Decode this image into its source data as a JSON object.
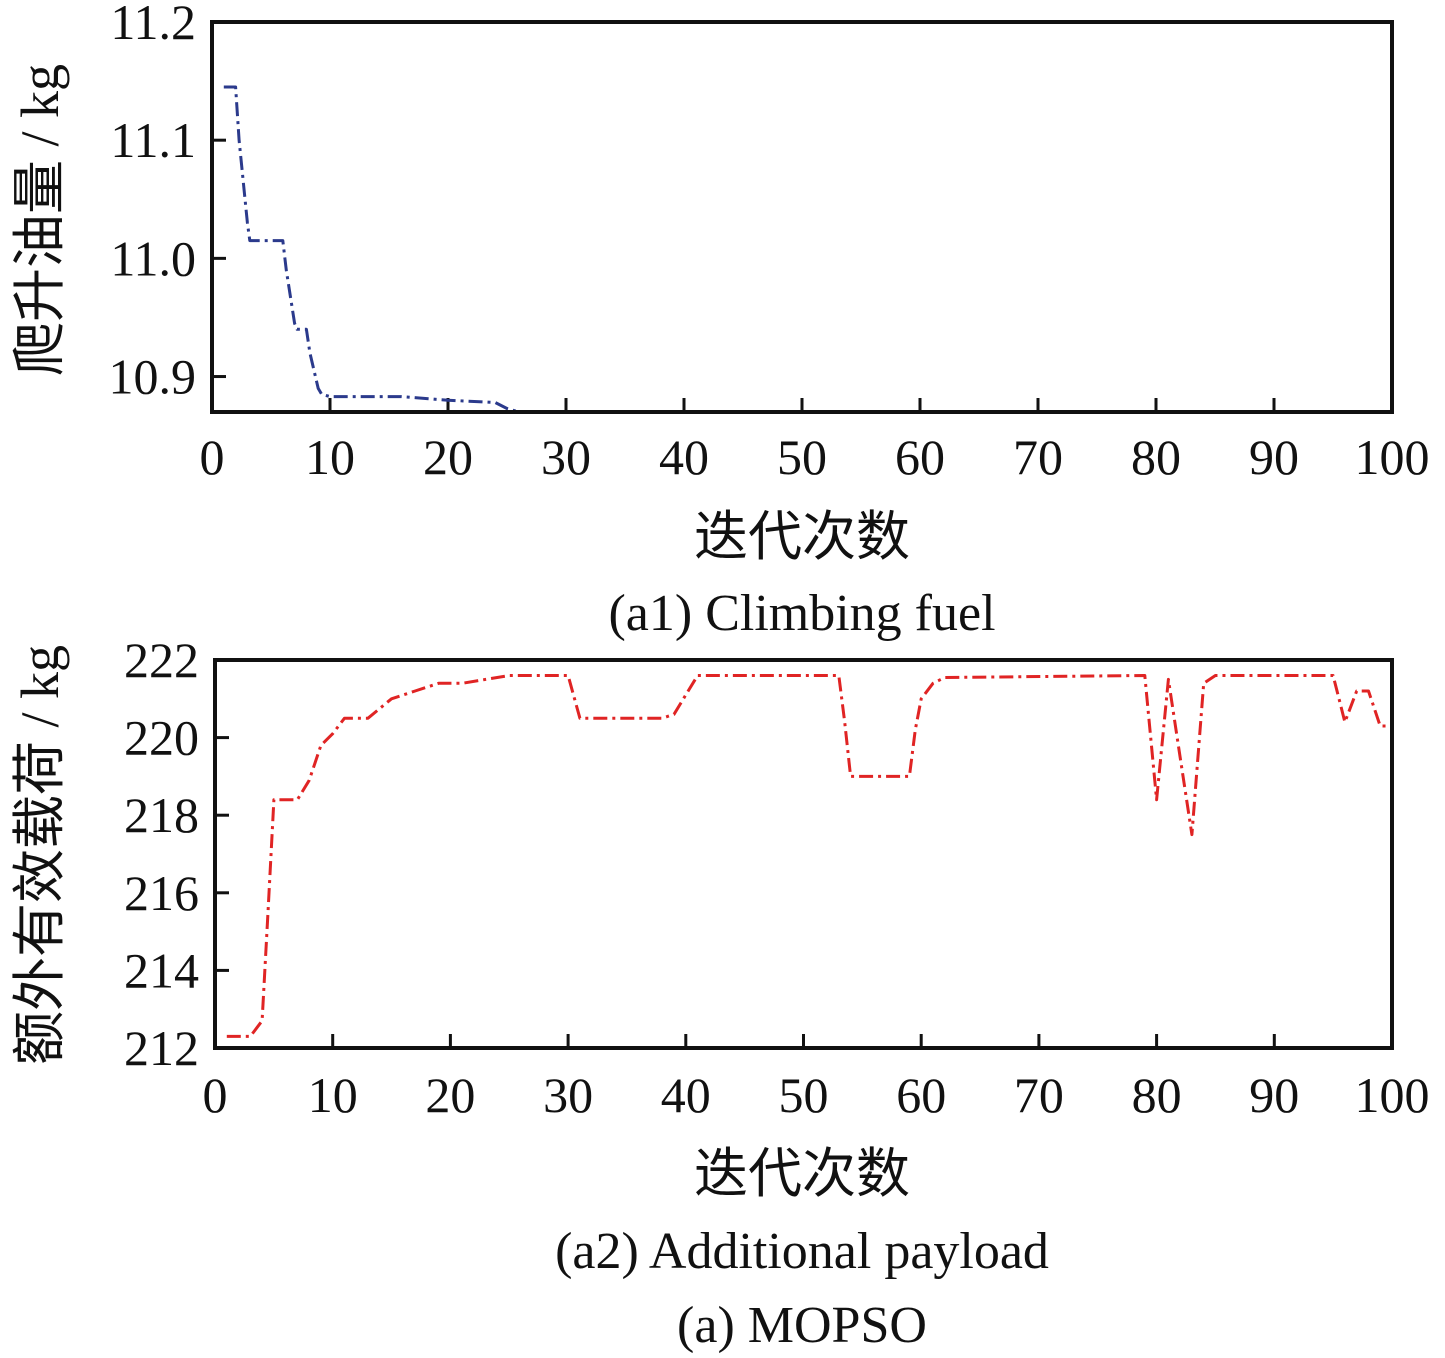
{
  "figure_caption": "(a) MOPSO",
  "chart_data": [
    {
      "id": "a1",
      "type": "line",
      "title": "(a1) Climbing fuel",
      "xlabel": "迭代次数",
      "ylabel": "爬升油量 / kg",
      "xlim": [
        0,
        100
      ],
      "ylim": [
        10.87,
        11.2
      ],
      "xticks": [
        0,
        10,
        20,
        30,
        40,
        50,
        60,
        70,
        80,
        90,
        100
      ],
      "yticks": [
        10.9,
        11.0,
        11.1,
        11.2
      ],
      "xtick_labels": [
        "0",
        "10",
        "20",
        "30",
        "40",
        "50",
        "60",
        "70",
        "80",
        "90",
        "100"
      ],
      "ytick_labels": [
        "10.9",
        "11.0",
        "11.1",
        "11.2"
      ],
      "grid": false,
      "line_style": "dash-dot",
      "series": [
        {
          "color": "#2b3a8c",
          "x": [
            1,
            2,
            2.3,
            3,
            3.2,
            6,
            6.3,
            7,
            7.2,
            8,
            8.3,
            9,
            9.3,
            10,
            16,
            20,
            24,
            25,
            26
          ],
          "y": [
            11.145,
            11.145,
            11.1,
            11.03,
            11.015,
            11.015,
            10.99,
            10.945,
            10.94,
            10.94,
            10.92,
            10.89,
            10.885,
            10.883,
            10.883,
            10.88,
            10.878,
            10.873,
            10.868
          ]
        }
      ]
    },
    {
      "id": "a2",
      "type": "line",
      "title": "(a2) Additional payload",
      "xlabel": "迭代次数",
      "ylabel": "额外有效载荷 / kg",
      "xlim": [
        0,
        100
      ],
      "ylim": [
        212,
        222
      ],
      "xticks": [
        0,
        10,
        20,
        30,
        40,
        50,
        60,
        70,
        80,
        90,
        100
      ],
      "yticks": [
        212,
        214,
        216,
        218,
        220,
        222
      ],
      "xtick_labels": [
        "0",
        "10",
        "20",
        "30",
        "40",
        "50",
        "60",
        "70",
        "80",
        "90",
        "100"
      ],
      "ytick_labels": [
        "212",
        "214",
        "216",
        "218",
        "220",
        "222"
      ],
      "grid": false,
      "line_style": "dash-dot",
      "series": [
        {
          "color": "#e02424",
          "x": [
            1,
            3,
            4,
            4.5,
            5,
            7,
            8,
            9,
            10,
            11,
            13,
            15,
            17,
            19,
            21,
            23,
            25,
            27,
            30,
            31,
            38,
            39,
            40,
            41,
            53,
            53.5,
            54,
            59,
            59.5,
            60,
            61,
            62,
            79,
            80,
            81,
            82,
            83,
            84,
            85,
            95,
            96,
            97,
            98,
            99,
            100
          ],
          "y": [
            212.3,
            212.3,
            212.7,
            215.5,
            218.4,
            218.4,
            218.9,
            219.8,
            220.1,
            220.5,
            220.5,
            221.0,
            221.2,
            221.4,
            221.4,
            221.5,
            221.6,
            221.6,
            221.6,
            220.5,
            220.5,
            220.6,
            221.1,
            221.6,
            221.6,
            220.4,
            219.0,
            219.0,
            220.2,
            221.0,
            221.4,
            221.55,
            221.6,
            218.4,
            221.5,
            219.5,
            217.5,
            221.4,
            221.6,
            221.6,
            220.4,
            221.2,
            221.2,
            220.3,
            220.3
          ]
        }
      ]
    }
  ]
}
